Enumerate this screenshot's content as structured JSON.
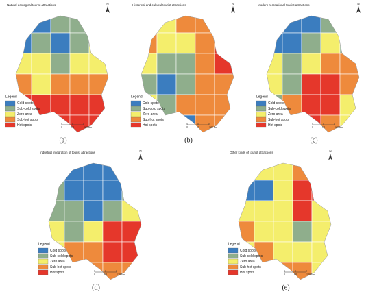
{
  "north_label": "N",
  "legend_colors": [
    "#3b7dbf",
    "#8fae8c",
    "#f4ee6c",
    "#ee8a3c",
    "#e5372b"
  ],
  "panels": [
    {
      "title": "Natural ecological tourist attractions",
      "label": "(a)",
      "legend": {
        "title": "Legend",
        "items": [
          "Cold spots",
          "Sub-cold spots",
          "Zero area",
          "Sub-hot spots",
          "Hot spots"
        ]
      },
      "scale": [
        "0",
        "60",
        "120 km"
      ]
    },
    {
      "title": "Historical and cultural tourist attractions",
      "label": "(b)",
      "legend": {
        "title": "Legend",
        "items": [
          "Cold spots",
          "Sub-cold spots",
          "Zero area",
          "Sub-hot spots",
          "Hot spots"
        ]
      },
      "scale": [
        "0",
        "60",
        "120 km"
      ]
    },
    {
      "title": "Modern recreational tourist attractions",
      "label": "(c)",
      "legend": {
        "title": "Legend",
        "items": [
          "Cold spots",
          "Sub-cold spots",
          "Zero area",
          "Sub-hot spots",
          "Hot spots"
        ]
      },
      "scale": [
        "0",
        "60",
        "120 km"
      ]
    },
    {
      "title": "Industrial integration of tourist attractions",
      "label": "(d)",
      "legend": {
        "title": "Legend",
        "items": [
          "Cold spots",
          "Sub-cold spots",
          "Zero area",
          "Sub-hot spots",
          "Hot spots"
        ]
      },
      "scale": [
        "0",
        "60",
        "120 km"
      ]
    },
    {
      "title": "Other kinds of tourist attractions",
      "label": "(e)",
      "legend": {
        "title": "Legend",
        "items": [
          "Cold spots",
          "Sub-cold spots",
          "Zero area",
          "Sub-hot spots",
          "Hot spots"
        ]
      },
      "scale": [
        "0",
        "60",
        "120 km"
      ]
    }
  ]
}
